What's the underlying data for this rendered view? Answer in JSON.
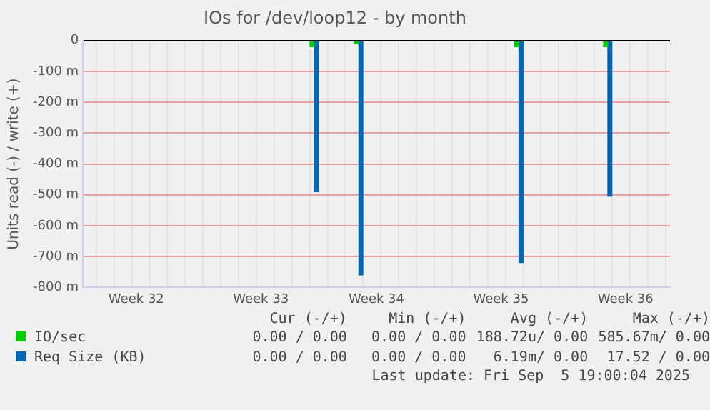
{
  "chart_data": {
    "type": "bar",
    "title": "IOs for /dev/loop12 - by month",
    "ylabel": "Units read (-) / write (+)",
    "categories": [
      null,
      null,
      null,
      null,
      null,
      null,
      "Week 32",
      null,
      null,
      null,
      null,
      null,
      null,
      null,
      null,
      null,
      null,
      null,
      null,
      null,
      "Week 33",
      null,
      null,
      null,
      null,
      null,
      null,
      null,
      null,
      null,
      null,
      null,
      null,
      "Week 34",
      null,
      null,
      null,
      null,
      null,
      null,
      null,
      null,
      null,
      null,
      null,
      null,
      null,
      "Week 35",
      null,
      null,
      null,
      null,
      null,
      null,
      null,
      null,
      null,
      null,
      null,
      null,
      null,
      "Week 36",
      null,
      null,
      null,
      null,
      null
    ],
    "ylim": [
      -800,
      0
    ],
    "yticks": [
      {
        "value": -800,
        "label": "-800 m"
      },
      {
        "value": -700,
        "label": "-700 m"
      },
      {
        "value": -600,
        "label": "-600 m"
      },
      {
        "value": -500,
        "label": "-500 m"
      },
      {
        "value": -400,
        "label": "-400 m"
      },
      {
        "value": -300,
        "label": "-300 m"
      },
      {
        "value": -200,
        "label": "-200 m"
      },
      {
        "value": -100,
        "label": "-100 m"
      },
      0
    ],
    "grid": true,
    "legend": "bottom left",
    "series": [
      {
        "name": "IO/sec",
        "color": "#00cc00",
        "values": [
          null,
          null,
          null,
          null,
          null,
          null,
          null,
          null,
          null,
          null,
          null,
          null,
          null,
          null,
          null,
          null,
          null,
          null,
          null,
          null,
          null,
          null,
          null,
          null,
          null,
          null,
          -20,
          null,
          null,
          null,
          null,
          -10,
          null,
          null,
          null,
          null,
          null,
          null,
          null,
          null,
          null,
          null,
          null,
          null,
          null,
          null,
          null,
          null,
          null,
          -20,
          null,
          null,
          null,
          null,
          null,
          null,
          null,
          null,
          null,
          -20,
          null,
          null,
          null,
          null,
          null,
          null,
          null
        ]
      },
      {
        "name": "Req Size (KB)",
        "color": "#0066b3",
        "values": [
          null,
          null,
          null,
          null,
          null,
          null,
          null,
          null,
          null,
          null,
          null,
          null,
          null,
          null,
          null,
          null,
          null,
          null,
          null,
          null,
          null,
          null,
          null,
          null,
          null,
          null,
          -490,
          null,
          null,
          null,
          null,
          -760,
          null,
          null,
          null,
          null,
          null,
          null,
          null,
          null,
          null,
          null,
          null,
          null,
          null,
          null,
          null,
          null,
          null,
          -720,
          null,
          null,
          null,
          null,
          null,
          null,
          null,
          null,
          null,
          -505,
          null,
          null,
          null,
          null,
          null,
          null,
          null
        ]
      }
    ],
    "annotations": [
      "Cur (-/+)",
      "Min (-/+)",
      "Avg (-/+)",
      "Max (-/+)",
      "0.00 / 0.00",
      "0.00 / 0.00",
      "188.72u/ 0.00",
      "585.67m/ 0.00",
      "0.00 / 0.00",
      "0.00 / 0.00",
      "6.19m/ 0.00",
      "17.52 / 0.00",
      "Last update: Fri Sep  5 19:00:04 2025"
    ]
  }
}
